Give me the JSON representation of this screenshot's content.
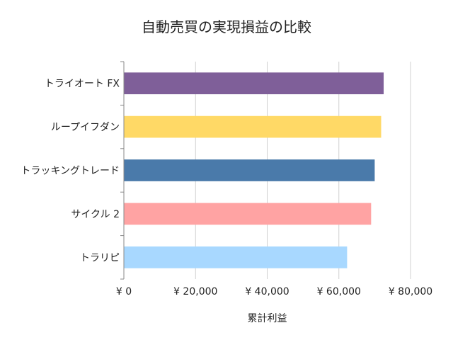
{
  "chart_data": {
    "type": "bar",
    "orientation": "horizontal",
    "title": "自動売買の実現損益の比較",
    "xlabel": "累計利益",
    "ylabel": "",
    "categories": [
      "トライオート FX",
      "ループイフダン",
      "トラッキングトレード",
      "サイクル 2",
      "トラリピ"
    ],
    "values": [
      72500,
      71800,
      70000,
      69000,
      62300
    ],
    "colors": [
      "#7f5f99",
      "#ffd966",
      "#4a7aaa",
      "#ffa3a3",
      "#a8d8ff"
    ],
    "xlim": [
      0,
      80000
    ],
    "x_ticks": [
      0,
      20000,
      40000,
      60000,
      80000
    ],
    "x_tick_labels": [
      "¥ 0",
      "¥ 20,000",
      "¥ 40,000",
      "¥ 60,000",
      "¥ 80,000"
    ],
    "grid": "vertical",
    "legend": "none"
  }
}
